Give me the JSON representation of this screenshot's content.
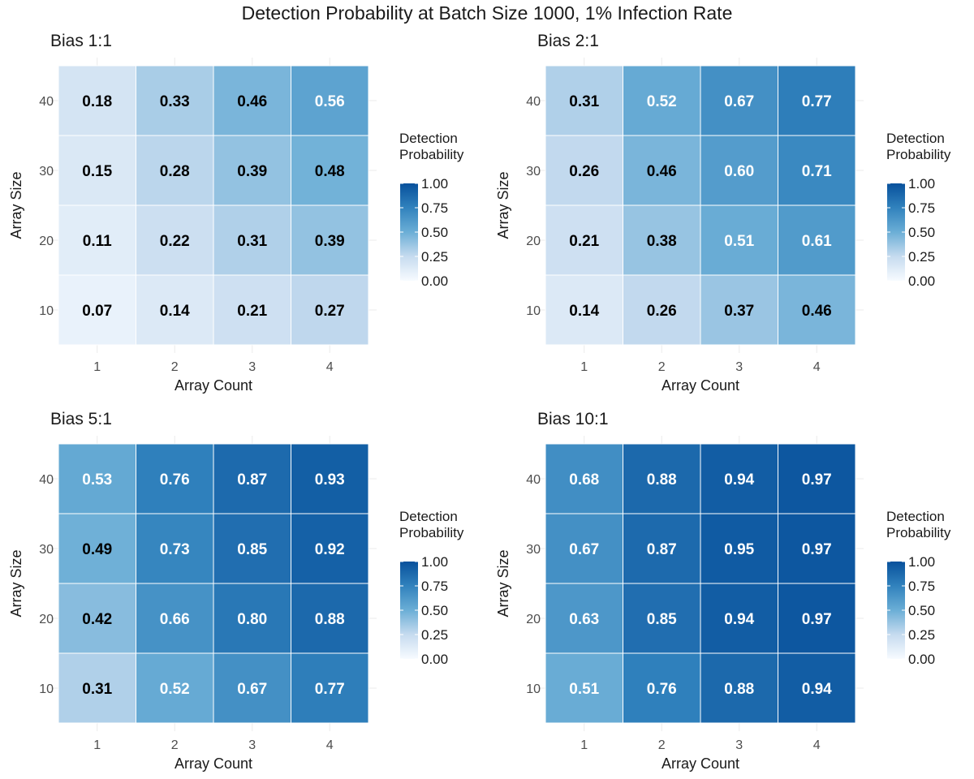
{
  "page_title": "Detection Probability at Batch Size 1000, 1% Infection Rate",
  "chart_data": [
    {
      "type": "heatmap",
      "title": "Bias 1:1",
      "xlabel": "Array Count",
      "ylabel": "Array Size",
      "x_categories": [
        "1",
        "2",
        "3",
        "4"
      ],
      "y_categories": [
        "10",
        "20",
        "30",
        "40"
      ],
      "values": [
        [
          0.07,
          0.14,
          0.21,
          0.27
        ],
        [
          0.11,
          0.22,
          0.31,
          0.39
        ],
        [
          0.15,
          0.28,
          0.39,
          0.48
        ],
        [
          0.18,
          0.33,
          0.46,
          0.56
        ]
      ],
      "legend": {
        "title": "Detection\nProbability",
        "ticks": [
          "0.00",
          "0.25",
          "0.50",
          "0.75",
          "1.00"
        ],
        "range": [
          0,
          1
        ],
        "position": "right"
      }
    },
    {
      "type": "heatmap",
      "title": "Bias 2:1",
      "xlabel": "Array Count",
      "ylabel": "Array Size",
      "x_categories": [
        "1",
        "2",
        "3",
        "4"
      ],
      "y_categories": [
        "10",
        "20",
        "30",
        "40"
      ],
      "values": [
        [
          0.14,
          0.26,
          0.37,
          0.46
        ],
        [
          0.21,
          0.38,
          0.51,
          0.61
        ],
        [
          0.26,
          0.46,
          0.6,
          0.71
        ],
        [
          0.31,
          0.52,
          0.67,
          0.77
        ]
      ],
      "legend": {
        "title": "Detection\nProbability",
        "ticks": [
          "0.00",
          "0.25",
          "0.50",
          "0.75",
          "1.00"
        ],
        "range": [
          0,
          1
        ],
        "position": "right"
      }
    },
    {
      "type": "heatmap",
      "title": "Bias 5:1",
      "xlabel": "Array Count",
      "ylabel": "Array Size",
      "x_categories": [
        "1",
        "2",
        "3",
        "4"
      ],
      "y_categories": [
        "10",
        "20",
        "30",
        "40"
      ],
      "values": [
        [
          0.31,
          0.52,
          0.67,
          0.77
        ],
        [
          0.42,
          0.66,
          0.8,
          0.88
        ],
        [
          0.49,
          0.73,
          0.85,
          0.92
        ],
        [
          0.53,
          0.76,
          0.87,
          0.93
        ]
      ],
      "legend": {
        "title": "Detection\nProbability",
        "ticks": [
          "0.00",
          "0.25",
          "0.50",
          "0.75",
          "1.00"
        ],
        "range": [
          0,
          1
        ],
        "position": "right"
      }
    },
    {
      "type": "heatmap",
      "title": "Bias 10:1",
      "xlabel": "Array Count",
      "ylabel": "Array Size",
      "x_categories": [
        "1",
        "2",
        "3",
        "4"
      ],
      "y_categories": [
        "10",
        "20",
        "30",
        "40"
      ],
      "values": [
        [
          0.51,
          0.76,
          0.88,
          0.94
        ],
        [
          0.63,
          0.85,
          0.94,
          0.97
        ],
        [
          0.67,
          0.87,
          0.95,
          0.97
        ],
        [
          0.68,
          0.88,
          0.94,
          0.97
        ]
      ],
      "legend": {
        "title": "Detection\nProbability",
        "ticks": [
          "0.00",
          "0.25",
          "0.50",
          "0.75",
          "1.00"
        ],
        "range": [
          0,
          1
        ],
        "position": "right"
      }
    }
  ],
  "colors": {
    "low": "#f7fbff",
    "high": "#08519c",
    "grid": "#ebebeb",
    "text_dark": "#000000",
    "text_light": "#ffffff"
  }
}
